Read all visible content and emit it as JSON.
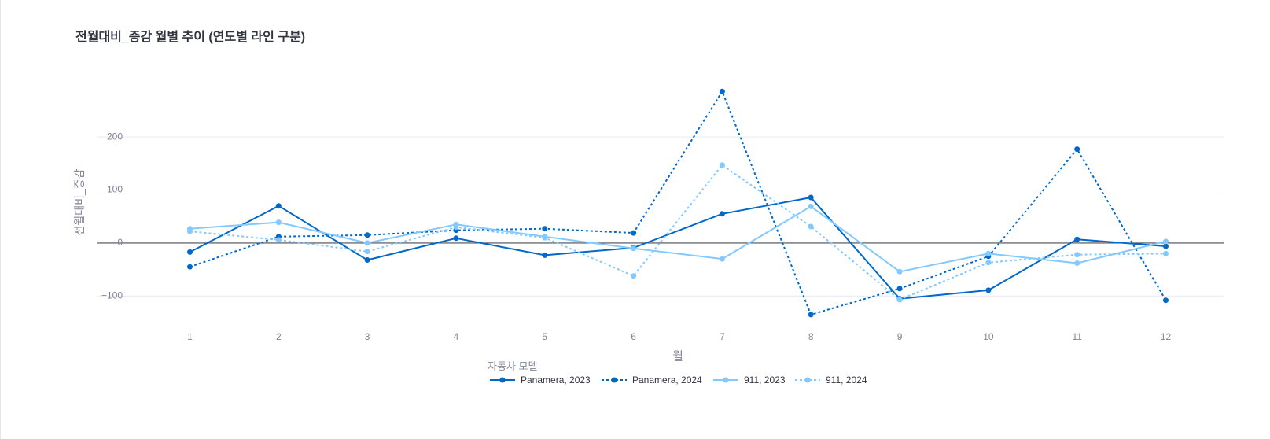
{
  "chart_data": {
    "type": "line",
    "title": "전월대비_증감 월별 추이 (연도별 라인 구분)",
    "xlabel": "월",
    "ylabel": "전월대비_증감",
    "x": [
      1,
      2,
      3,
      4,
      5,
      6,
      7,
      8,
      9,
      10,
      11,
      12
    ],
    "yticks": [
      200,
      100,
      0,
      -100
    ],
    "ytick_labels": [
      "200",
      "100",
      "0",
      "−100"
    ],
    "ylim": [
      -150,
      310
    ],
    "xlim": [
      -0.05,
      12.66
    ],
    "grid": true,
    "legend": {
      "title": "자동차 모델",
      "placement": "bottom-center",
      "orientation": "horizontal"
    },
    "series": [
      {
        "name": "Panamera, 2023",
        "color": "#0068c9",
        "dash": "solid",
        "values": [
          -17,
          70,
          -32,
          9,
          -23,
          -9,
          55,
          86,
          -105,
          -89,
          7,
          -6
        ]
      },
      {
        "name": "Panamera, 2024",
        "color": "#0068c9",
        "dash": "dot",
        "values": [
          -45,
          12,
          15,
          24,
          27,
          19,
          286,
          -135,
          -86,
          -25,
          177,
          -108
        ]
      },
      {
        "name": "911, 2023",
        "color": "#83c9ff",
        "dash": "solid",
        "values": [
          27,
          39,
          0,
          35,
          12,
          -10,
          -30,
          69,
          -54,
          -20,
          -38,
          3
        ]
      },
      {
        "name": "911, 2024",
        "color": "#83c9ff",
        "dash": "dot",
        "values": [
          22,
          6,
          -16,
          30,
          10,
          -62,
          147,
          31,
          -107,
          -37,
          -22,
          -20
        ]
      }
    ]
  }
}
